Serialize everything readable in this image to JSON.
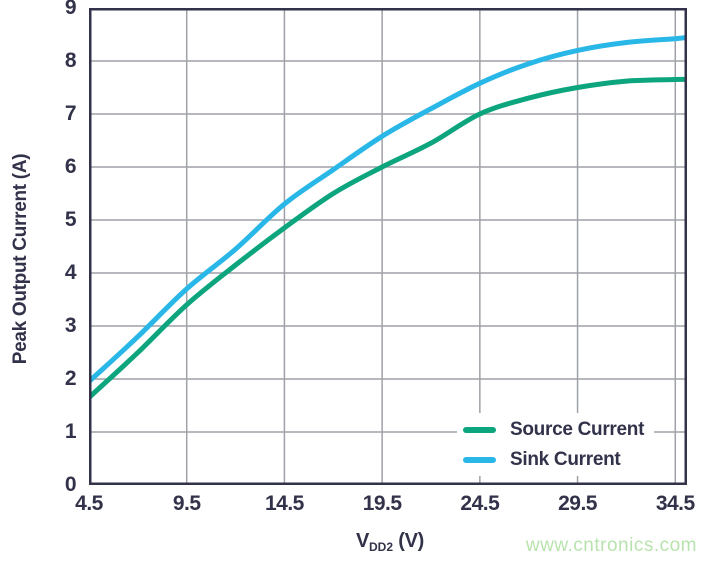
{
  "figure": {
    "y_axis_title": "Peak Output Current (A)",
    "x_axis_title": {
      "main": "V",
      "sub": "DD2",
      "unit": " (V)"
    },
    "watermark": "www.cntronics.com"
  },
  "legend": {
    "items": [
      {
        "label": "Source Current"
      },
      {
        "label": "Sink Current"
      }
    ]
  },
  "colors": {
    "axis_text": "#32324a",
    "grid": "#9fa1a8",
    "source_green": "#0ca57d",
    "sink_blue": "#29b7e8",
    "watermark_green": "#b9e3ae",
    "background": "#ffffff"
  },
  "chart_data": {
    "type": "line",
    "title": "",
    "xlabel": "VDD2 (V)",
    "ylabel": "Peak Output Current (A)",
    "xlim": [
      4.5,
      35.1
    ],
    "ylim": [
      0,
      9
    ],
    "xticks": [
      "4.5",
      "9.5",
      "14.5",
      "19.5",
      "24.5",
      "29.5",
      "34.5"
    ],
    "yticks": [
      "0",
      "1",
      "2",
      "3",
      "4",
      "5",
      "6",
      "7",
      "8",
      "9"
    ],
    "xgrid": [
      9.5,
      14.5,
      19.5,
      24.5,
      29.5,
      34.5
    ],
    "ygrid": [
      1,
      2,
      3,
      4,
      5,
      6,
      7,
      8
    ],
    "grid": true,
    "legend_position": "inside lower right",
    "x": [
      4.5,
      7,
      9.5,
      12,
      14.5,
      17,
      19.5,
      22,
      24.5,
      27,
      29.5,
      32,
      34.5,
      35.1
    ],
    "series": [
      {
        "name": "Source Current",
        "color": "#0ca57d",
        "values": [
          1.65,
          2.5,
          3.4,
          4.15,
          4.85,
          5.5,
          6.0,
          6.45,
          7.0,
          7.3,
          7.5,
          7.62,
          7.65,
          7.65
        ]
      },
      {
        "name": "Sink Current",
        "color": "#29b7e8",
        "values": [
          1.95,
          2.8,
          3.7,
          4.45,
          5.3,
          5.95,
          6.58,
          7.1,
          7.58,
          7.95,
          8.2,
          8.35,
          8.42,
          8.45
        ]
      }
    ]
  }
}
